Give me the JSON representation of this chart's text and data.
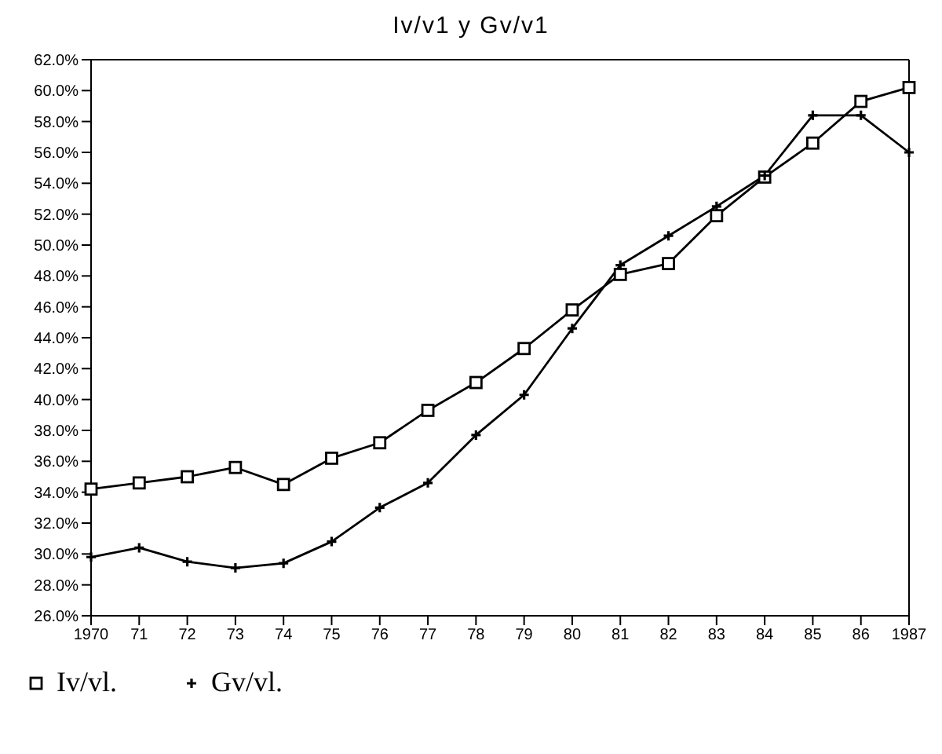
{
  "chart_data": {
    "type": "line",
    "title": "Iv/v1 y Gv/v1",
    "categories": [
      "1970",
      "71",
      "72",
      "73",
      "74",
      "75",
      "76",
      "77",
      "78",
      "79",
      "80",
      "81",
      "82",
      "83",
      "84",
      "85",
      "86",
      "1987"
    ],
    "series": [
      {
        "name": "Iv/vl.",
        "color": "#000000",
        "marker": "square",
        "values": [
          34.2,
          34.6,
          35.0,
          35.6,
          34.5,
          36.2,
          37.2,
          39.3,
          41.1,
          43.3,
          45.8,
          48.1,
          48.8,
          51.9,
          54.4,
          56.6,
          59.3,
          60.2
        ]
      },
      {
        "name": "Gv/vl.",
        "color": "#000000",
        "marker": "cross",
        "values": [
          29.8,
          30.4,
          29.5,
          29.1,
          29.4,
          30.8,
          33.0,
          34.6,
          37.7,
          40.3,
          44.6,
          48.7,
          50.6,
          52.5,
          54.5,
          58.4,
          58.4,
          56.0
        ]
      }
    ],
    "ylim": [
      26,
      62
    ],
    "yticks": [
      {
        "value": 26,
        "label": "26.0%"
      },
      {
        "value": 28,
        "label": "28.0%"
      },
      {
        "value": 30,
        "label": "30.0%"
      },
      {
        "value": 32,
        "label": "32.0%"
      },
      {
        "value": 34,
        "label": "34.0%"
      },
      {
        "value": 36,
        "label": "36.0%"
      },
      {
        "value": 38,
        "label": "38.0%"
      },
      {
        "value": 40,
        "label": "40.0%"
      },
      {
        "value": 42,
        "label": "42.0%"
      },
      {
        "value": 44,
        "label": "44.0%"
      },
      {
        "value": 46,
        "label": "46.0%"
      },
      {
        "value": 48,
        "label": "48.0%"
      },
      {
        "value": 50,
        "label": "50.0%"
      },
      {
        "value": 52,
        "label": "52.0%"
      },
      {
        "value": 54,
        "label": "54.0%"
      },
      {
        "value": 56,
        "label": "56.0%"
      },
      {
        "value": 58,
        "label": "58.0%"
      },
      {
        "value": 60,
        "label": "60.0%"
      },
      {
        "value": 62,
        "label": "62.0%"
      }
    ],
    "grid": false,
    "legend": "bottom left",
    "line_style": "solid"
  }
}
